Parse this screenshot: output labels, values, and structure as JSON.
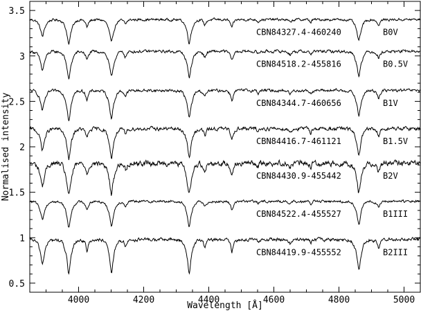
{
  "chart_data": {
    "type": "line",
    "title": "",
    "xlabel": "Wavelength [Å]",
    "ylabel": "Normalised intensity",
    "xlim": [
      3850,
      5050
    ],
    "ylim": [
      0.4,
      3.6
    ],
    "xticks": [
      4000,
      4200,
      4400,
      4600,
      4800,
      5000
    ],
    "yticks": [
      0.5,
      1,
      1.5,
      2,
      2.5,
      3,
      3.5
    ],
    "grid": false,
    "legend": "none",
    "line_color": "#000000",
    "absorption_lines": [
      {
        "wavelength": 3889,
        "depth": 0.22,
        "width": 5
      },
      {
        "wavelength": 3970,
        "depth": 0.32,
        "width": 5
      },
      {
        "wavelength": 4026,
        "depth": 0.1,
        "width": 3
      },
      {
        "wavelength": 4101,
        "depth": 0.3,
        "width": 5
      },
      {
        "wavelength": 4144,
        "depth": 0.06,
        "width": 3
      },
      {
        "wavelength": 4340,
        "depth": 0.3,
        "width": 5
      },
      {
        "wavelength": 4388,
        "depth": 0.07,
        "width": 3
      },
      {
        "wavelength": 4471,
        "depth": 0.11,
        "width": 3
      },
      {
        "wavelength": 4552,
        "depth": 0.03,
        "width": 2
      },
      {
        "wavelength": 4650,
        "depth": 0.04,
        "width": 3
      },
      {
        "wavelength": 4713,
        "depth": 0.04,
        "width": 2
      },
      {
        "wavelength": 4861,
        "depth": 0.28,
        "width": 5
      },
      {
        "wavelength": 4922,
        "depth": 0.08,
        "width": 3
      }
    ],
    "series": [
      {
        "name": "CBN84327.4-460240",
        "sptype": "B0V",
        "offset": 3.4,
        "noise": 0.012,
        "depth_scale": 0.85
      },
      {
        "name": "CBN84518.2-455816",
        "sptype": "B0.5V",
        "offset": 3.05,
        "noise": 0.014,
        "depth_scale": 0.95
      },
      {
        "name": "CBN84344.7-460656",
        "sptype": "B1V",
        "offset": 2.62,
        "noise": 0.014,
        "depth_scale": 1.0
      },
      {
        "name": "CBN84416.7-461121",
        "sptype": "B1.5V",
        "offset": 2.2,
        "noise": 0.018,
        "depth_scale": 1.05
      },
      {
        "name": "CBN84430.9-455442",
        "sptype": "B2V",
        "offset": 1.82,
        "noise": 0.026,
        "depth_scale": 1.15
      },
      {
        "name": "CBN84522.4-455527",
        "sptype": "B1III",
        "offset": 1.4,
        "noise": 0.012,
        "depth_scale": 0.9
      },
      {
        "name": "CBN84419.9-455552",
        "sptype": "B2III",
        "offset": 0.98,
        "noise": 0.016,
        "depth_scale": 1.2
      }
    ]
  }
}
